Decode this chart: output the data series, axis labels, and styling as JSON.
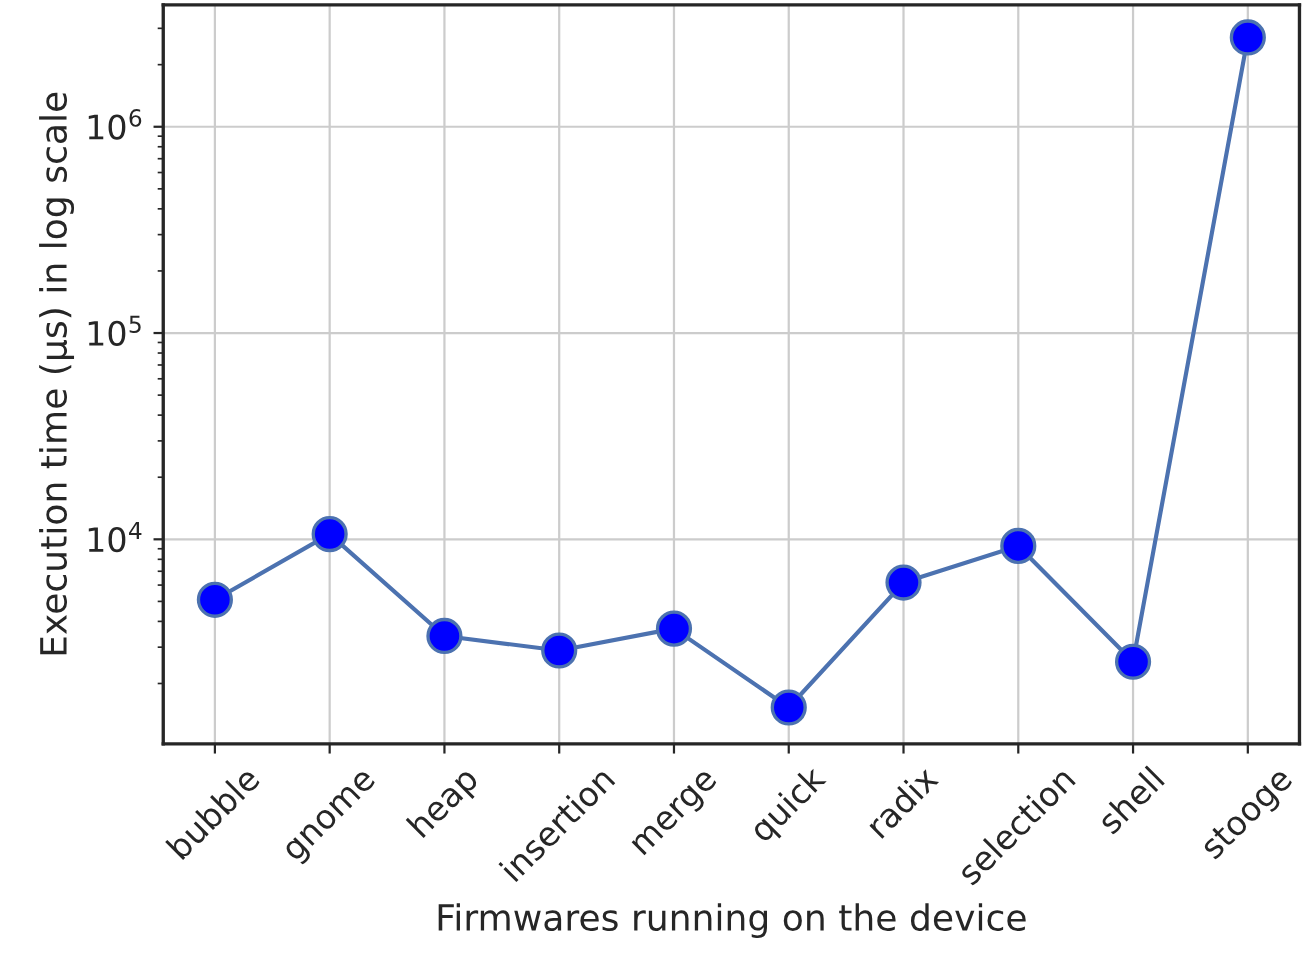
{
  "chart_data": {
    "type": "line",
    "xlabel": "Firmwares running on the device",
    "ylabel": "Execution time (μs) in log scale",
    "categories": [
      "bubble",
      "gnome",
      "heap",
      "insertion",
      "merge",
      "quick",
      "radix",
      "selection",
      "shell",
      "stooge"
    ],
    "series": [
      {
        "color": "#4c72b0",
        "colors": [
          "#0000ff",
          "#0000ff",
          "#0000ff",
          "#0000ff",
          "#0000ff",
          "#0000ff",
          "#0000ff",
          "#0000ff",
          "#0000ff",
          "#0000ff"
        ],
        "values": [
          5090,
          10600,
          3400,
          2890,
          3690,
          1530,
          6170,
          9290,
          2550,
          2710000
        ]
      }
    ],
    "log": true,
    "ylim": [
      1020,
      3900000
    ],
    "yticks": [
      {
        "value": 10000,
        "label": "10$^{4}$"
      },
      {
        "value": 100000,
        "label": "10$^{5}$"
      },
      {
        "value": 1000000,
        "label": "10$^{6}$"
      }
    ],
    "grid": true,
    "marker": "circle",
    "line_style": "solid"
  }
}
